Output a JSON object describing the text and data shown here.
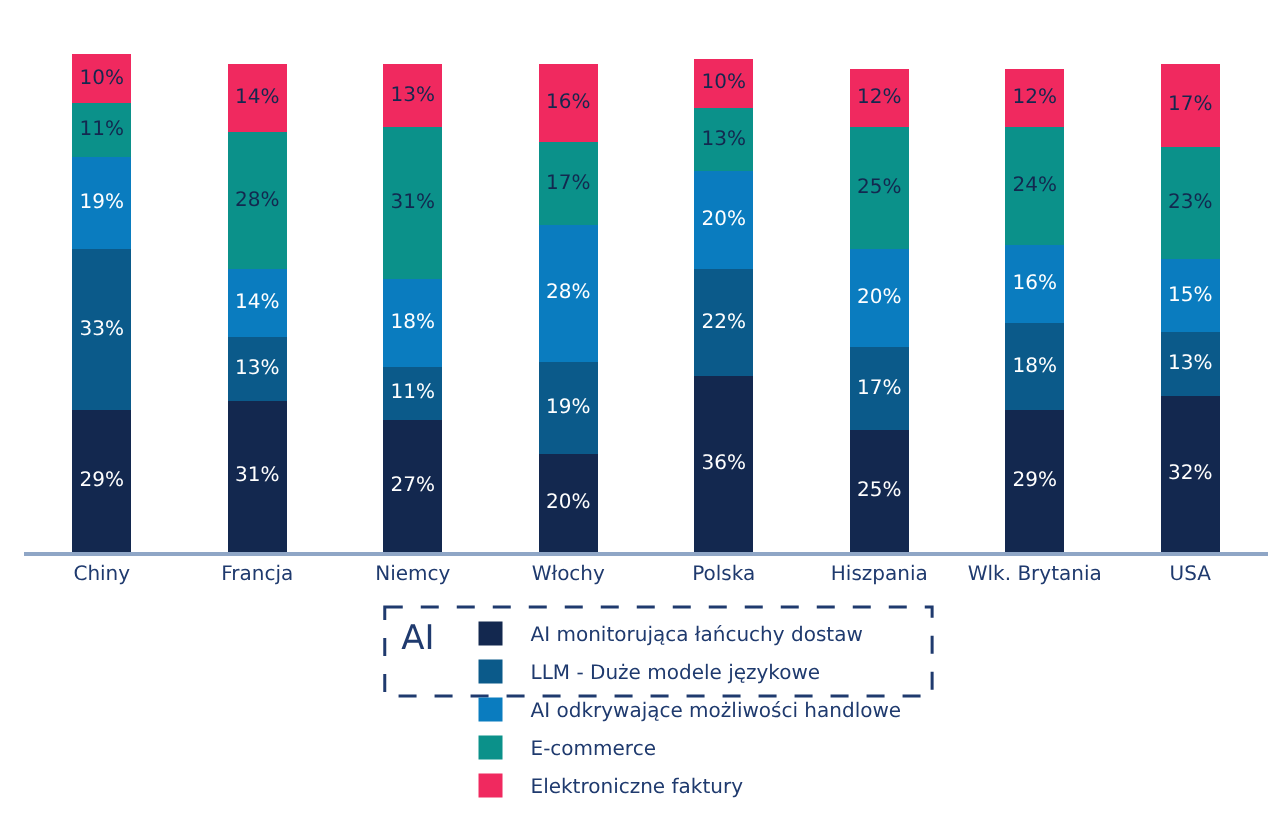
{
  "chart_data": {
    "type": "bar",
    "stacked": true,
    "legend": "bottom",
    "legend_title": "AI",
    "categories": [
      "Chiny",
      "Francja",
      "Niemcy",
      "Włochy",
      "Polska",
      "Hiszpania",
      "Wlk. Brytania",
      "USA"
    ],
    "series": [
      {
        "name": "AI monitorująca łańcuchy dostaw",
        "color": "#13284f",
        "values": [
          29,
          31,
          27,
          20,
          36,
          25,
          29,
          32
        ],
        "value_labels": [
          "29%",
          "31%",
          "27%",
          "20%",
          "36%",
          "25%",
          "29%",
          "32%"
        ]
      },
      {
        "name": "LLM - Duże modele językowe",
        "color": "#0b5a8a",
        "values": [
          33,
          13,
          11,
          19,
          22,
          17,
          18,
          13
        ],
        "value_labels": [
          "33%",
          "13%",
          "11%",
          "19%",
          "22%",
          "17%",
          "18%",
          "13%"
        ]
      },
      {
        "name": "AI odkrywające możliwości handlowe",
        "color": "#0a7cbf",
        "values": [
          19,
          14,
          18,
          28,
          20,
          20,
          16,
          15
        ],
        "value_labels": [
          "19%",
          "14%",
          "18%",
          "28%",
          "20%",
          "20%",
          "16%",
          "15%"
        ]
      },
      {
        "name": "E-commerce",
        "color": "#0b918a",
        "values": [
          11,
          28,
          31,
          17,
          13,
          25,
          24,
          23
        ],
        "value_labels": [
          "11%",
          "28%",
          "31%",
          "17%",
          "13%",
          "25%",
          "24%",
          "23%"
        ]
      },
      {
        "name": "Elektroniczne faktury",
        "color": "#f0295f",
        "values": [
          10,
          14,
          13,
          16,
          10,
          12,
          12,
          17
        ],
        "value_labels": [
          "10%",
          "14%",
          "13%",
          "16%",
          "10%",
          "12%",
          "12%",
          "17%"
        ]
      }
    ]
  }
}
